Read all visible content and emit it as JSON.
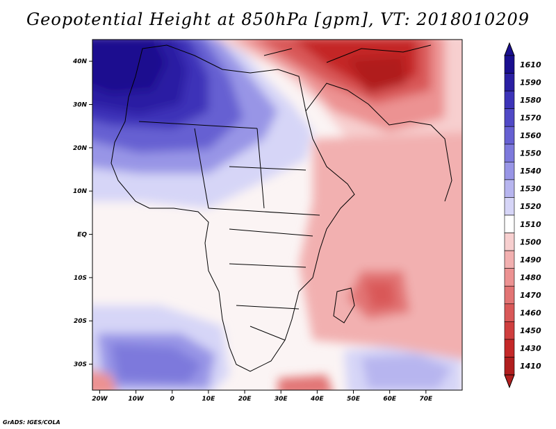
{
  "title": "Geopotential Height at 850hPa [gpm], VT: 2018010209",
  "credit": "GrADS: IGES/COLA",
  "map": {
    "lon_range": [
      -22,
      80
    ],
    "lat_range": [
      -36,
      45
    ],
    "lat_labels": [
      "40N",
      "30N",
      "20N",
      "10N",
      "EQ",
      "10S",
      "20S",
      "30S"
    ],
    "lat_values": [
      40,
      30,
      20,
      10,
      0,
      -10,
      -20,
      -30
    ],
    "lon_labels": [
      "20W",
      "10W",
      "0",
      "10E",
      "20E",
      "30E",
      "40E",
      "50E",
      "60E",
      "70E"
    ],
    "lon_values": [
      -20,
      -10,
      0,
      10,
      20,
      30,
      40,
      50,
      60,
      70
    ]
  },
  "colorbar": {
    "levels": [
      "1610",
      "1590",
      "1580",
      "1570",
      "1560",
      "1550",
      "1540",
      "1530",
      "1520",
      "1510",
      "1500",
      "1490",
      "1480",
      "1470",
      "1460",
      "1450",
      "1430",
      "1410"
    ],
    "colors": [
      "#1a0f8f",
      "#2a1fa3",
      "#3c33b8",
      "#5049c6",
      "#6660d2",
      "#7d79dc",
      "#9895e6",
      "#b7b5ef",
      "#d6d5f7",
      "#ffffff",
      "#f7cfcf",
      "#f2b0b0",
      "#ec9292",
      "#e27474",
      "#d95858",
      "#cf3e3e",
      "#c42828",
      "#b01e1e"
    ]
  }
}
